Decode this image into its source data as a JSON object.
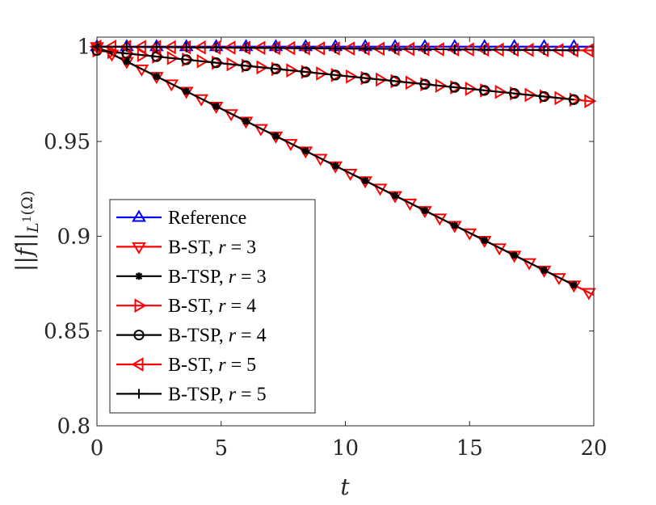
{
  "chart_data": {
    "type": "line",
    "xlabel": "t",
    "ylabel": "||f||_{L^1(Ω)}",
    "ylabel_parts": {
      "norm": "||f||",
      "sub": "L",
      "sup": "1",
      "domain": "(Ω)"
    },
    "xlim": [
      0,
      20
    ],
    "ylim": [
      0.8,
      1.005
    ],
    "xticks": [
      0,
      5,
      10,
      15,
      20
    ],
    "xtick_labels": [
      "0",
      "5",
      "10",
      "15",
      "20"
    ],
    "yticks": [
      0.8,
      0.85,
      0.9,
      0.95,
      1
    ],
    "ytick_labels": [
      "0.8",
      "0.85",
      "0.9",
      "0.95",
      "1"
    ],
    "grid": false,
    "legend_position": "bottom-left",
    "series": [
      {
        "name": "Reference",
        "label_text": "Reference",
        "label_var": "",
        "label_value": "",
        "color": "#0000ff",
        "marker": "triangle-up",
        "marker_interval": 1.2,
        "x_end": 20,
        "y0": 1.0,
        "slope": 0.0
      },
      {
        "name": "B-ST, r = 3",
        "label_text": "B-ST, ",
        "label_var": "r",
        "label_value": " = 3",
        "color": "#ff0000",
        "marker": "triangle-down",
        "marker_interval": 0.6,
        "x_end": 20,
        "y0": 1.0,
        "slope": -0.00655
      },
      {
        "name": "B-TSP, r = 3",
        "label_text": "B-TSP, ",
        "label_var": "r",
        "label_value": " = 3",
        "color": "#000000",
        "marker": "asterisk",
        "marker_interval": 1.2,
        "x_end": 19.2,
        "y0": 1.0,
        "slope": -0.00655
      },
      {
        "name": "B-ST, r = 4",
        "label_text": "B-ST, ",
        "label_var": "r",
        "label_value": " = 4",
        "color": "#ff0000",
        "marker": "triangle-right",
        "marker_interval": 0.6,
        "x_end": 20,
        "y0": 0.998,
        "slope": -0.00135
      },
      {
        "name": "B-TSP, r = 4",
        "label_text": "B-TSP, ",
        "label_var": "r",
        "label_value": " = 4",
        "color": "#000000",
        "marker": "circle",
        "marker_interval": 1.2,
        "x_end": 19.2,
        "y0": 0.998,
        "slope": -0.00135
      },
      {
        "name": "B-ST, r = 5",
        "label_text": "B-ST, ",
        "label_var": "r",
        "label_value": " = 5",
        "color": "#ff0000",
        "marker": "triangle-left",
        "marker_interval": 0.6,
        "x_end": 20,
        "y0": 1.0,
        "slope": -0.0001
      },
      {
        "name": "B-TSP, r = 5",
        "label_text": "B-TSP, ",
        "label_var": "r",
        "label_value": " = 5",
        "color": "#000000",
        "marker": "plus",
        "marker_interval": 1.2,
        "x_end": 19.2,
        "y0": 1.0,
        "slope": -0.0001
      }
    ]
  }
}
